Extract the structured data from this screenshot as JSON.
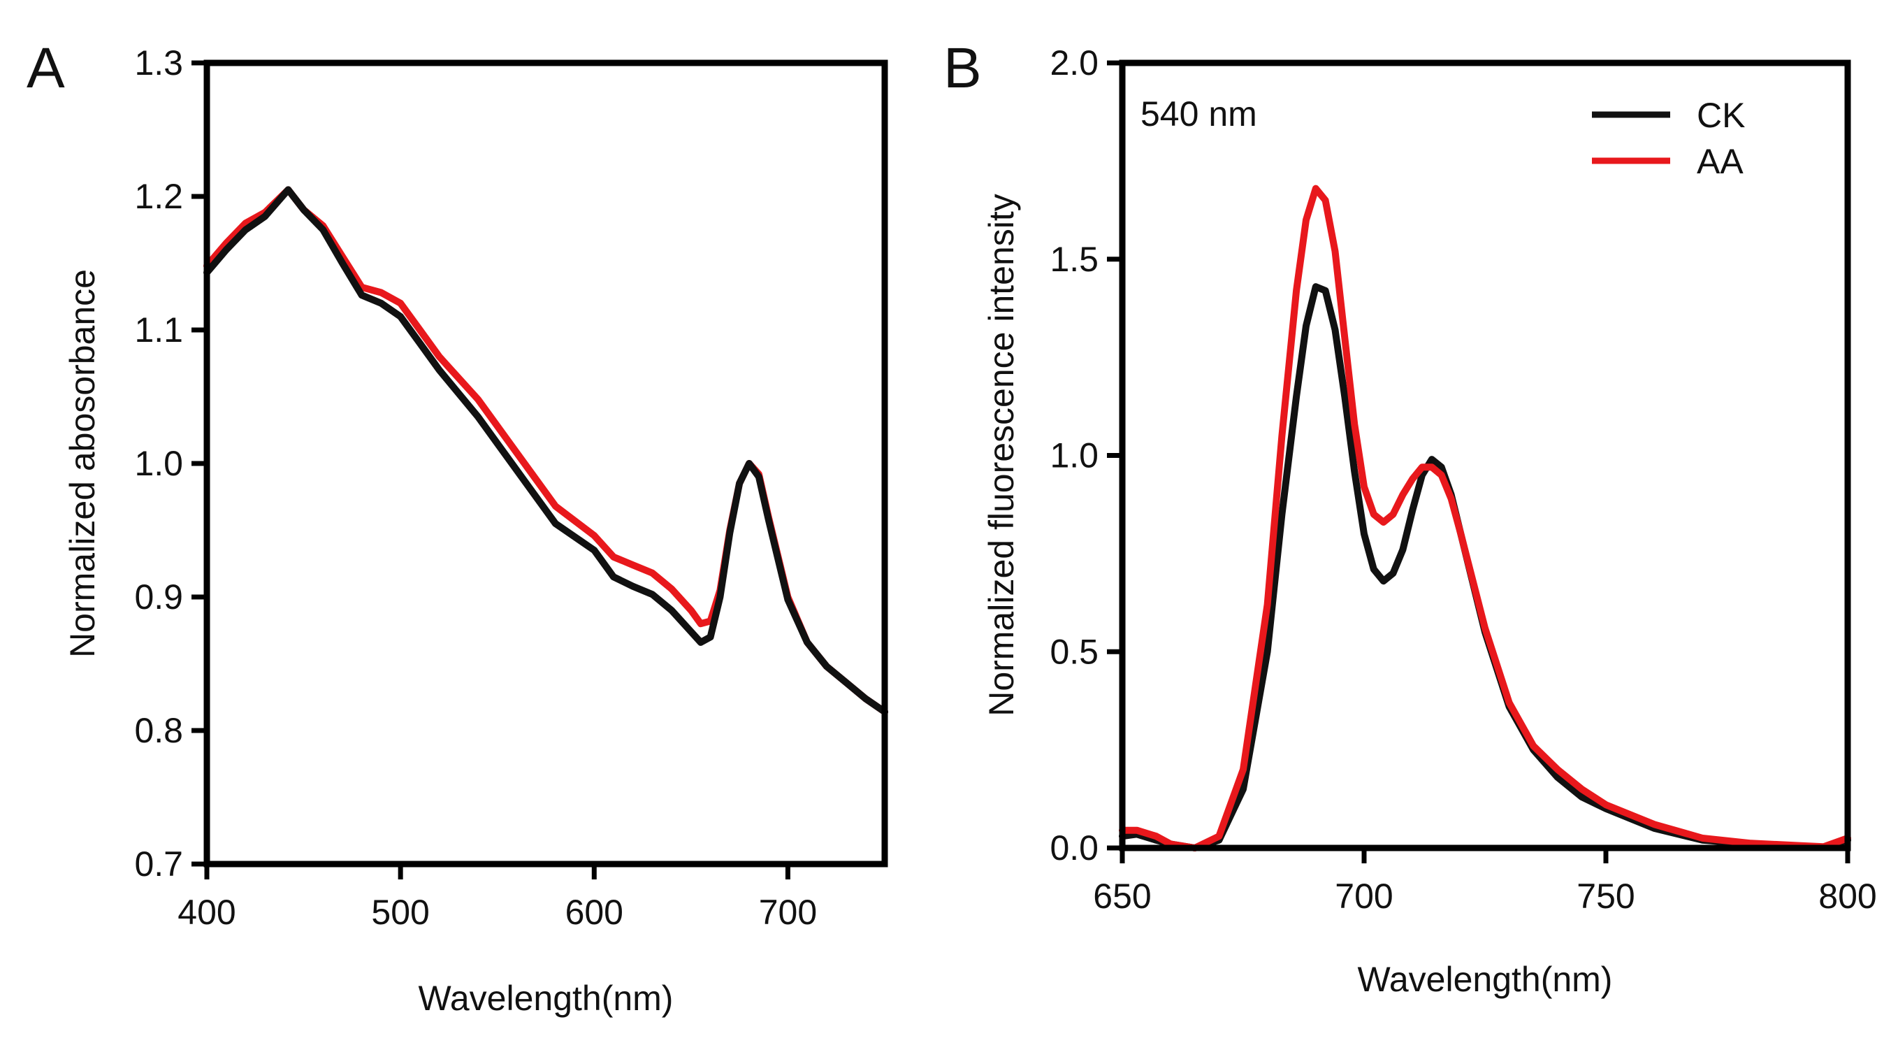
{
  "chart_data": [
    {
      "panel": "A",
      "type": "line",
      "xlabel": "Wavelength(nm)",
      "ylabel": "Normalized abosorbance",
      "xlim": [
        400,
        750
      ],
      "ylim": [
        0.7,
        1.3
      ],
      "xticks": [
        400,
        500,
        600,
        700
      ],
      "yticks": [
        0.7,
        0.8,
        0.9,
        1.0,
        1.1,
        1.2,
        1.3
      ],
      "ytick_labels": [
        "0.7",
        "0.8",
        "0.9",
        "1.0",
        "1.1",
        "1.2",
        "1.3"
      ],
      "grid": false,
      "series": [
        {
          "name": "AA",
          "color": "#e8181c",
          "x": [
            400,
            410,
            420,
            430,
            442,
            450,
            460,
            470,
            480,
            490,
            500,
            510,
            520,
            540,
            560,
            580,
            600,
            610,
            620,
            630,
            640,
            650,
            655,
            660,
            665,
            670,
            675,
            680,
            685,
            690,
            700,
            710,
            720,
            730,
            740,
            750
          ],
          "y": [
            1.148,
            1.165,
            1.18,
            1.188,
            1.205,
            1.19,
            1.178,
            1.155,
            1.132,
            1.128,
            1.12,
            1.1,
            1.08,
            1.048,
            1.008,
            0.968,
            0.946,
            0.93,
            0.924,
            0.918,
            0.906,
            0.89,
            0.88,
            0.882,
            0.905,
            0.95,
            0.985,
            1.0,
            0.992,
            0.96,
            0.9,
            0.866,
            0.848,
            0.836,
            0.824,
            0.814
          ]
        },
        {
          "name": "CK",
          "color": "#111111",
          "x": [
            400,
            410,
            420,
            430,
            442,
            450,
            460,
            470,
            480,
            490,
            500,
            510,
            520,
            540,
            560,
            580,
            600,
            610,
            620,
            630,
            640,
            650,
            655,
            660,
            665,
            670,
            675,
            680,
            685,
            690,
            700,
            710,
            720,
            730,
            740,
            750
          ],
          "y": [
            1.143,
            1.16,
            1.175,
            1.185,
            1.205,
            1.19,
            1.175,
            1.15,
            1.126,
            1.12,
            1.11,
            1.09,
            1.07,
            1.035,
            0.995,
            0.955,
            0.935,
            0.915,
            0.908,
            0.902,
            0.89,
            0.874,
            0.866,
            0.87,
            0.9,
            0.948,
            0.985,
            1.0,
            0.99,
            0.958,
            0.898,
            0.866,
            0.848,
            0.836,
            0.824,
            0.814
          ]
        }
      ]
    },
    {
      "panel": "B",
      "type": "line",
      "xlabel": "Wavelength(nm)",
      "ylabel": "Normalized fluorescence intensity",
      "xlim": [
        650,
        800
      ],
      "ylim": [
        0.0,
        2.0
      ],
      "xticks": [
        650,
        700,
        750,
        800
      ],
      "yticks": [
        0.0,
        0.5,
        1.0,
        1.5,
        2.0
      ],
      "ytick_labels": [
        "0.0",
        "0.5",
        "1.0",
        "1.5",
        "2.0"
      ],
      "annotation": "540 nm",
      "legend": "top-right",
      "grid": false,
      "series": [
        {
          "name": "CK",
          "color": "#111111",
          "x": [
            650,
            653,
            657,
            660,
            665,
            670,
            675,
            680,
            683,
            686,
            688,
            690,
            692,
            694,
            696,
            698,
            700,
            702,
            704,
            706,
            708,
            710,
            712,
            714,
            716,
            718,
            720,
            725,
            730,
            735,
            740,
            745,
            750,
            760,
            770,
            780,
            790,
            795,
            800
          ],
          "y": [
            0.03,
            0.035,
            0.02,
            0.01,
            0.0,
            0.02,
            0.15,
            0.5,
            0.85,
            1.15,
            1.33,
            1.43,
            1.42,
            1.32,
            1.15,
            0.96,
            0.8,
            0.71,
            0.68,
            0.7,
            0.76,
            0.86,
            0.95,
            0.99,
            0.97,
            0.9,
            0.8,
            0.55,
            0.36,
            0.25,
            0.18,
            0.13,
            0.1,
            0.05,
            0.02,
            0.01,
            0.005,
            0.002,
            0.02
          ]
        },
        {
          "name": "AA",
          "color": "#e8181c",
          "x": [
            650,
            653,
            657,
            660,
            665,
            670,
            675,
            680,
            683,
            686,
            688,
            690,
            692,
            694,
            696,
            698,
            700,
            702,
            704,
            706,
            708,
            710,
            712,
            714,
            716,
            718,
            720,
            725,
            730,
            735,
            740,
            745,
            750,
            760,
            770,
            780,
            790,
            795,
            800
          ],
          "y": [
            0.045,
            0.045,
            0.03,
            0.01,
            0.0,
            0.03,
            0.2,
            0.62,
            1.05,
            1.42,
            1.6,
            1.68,
            1.65,
            1.52,
            1.3,
            1.08,
            0.92,
            0.85,
            0.83,
            0.85,
            0.9,
            0.94,
            0.97,
            0.97,
            0.95,
            0.89,
            0.8,
            0.56,
            0.37,
            0.26,
            0.2,
            0.15,
            0.11,
            0.06,
            0.025,
            0.012,
            0.006,
            0.003,
            0.025
          ]
        }
      ]
    }
  ]
}
